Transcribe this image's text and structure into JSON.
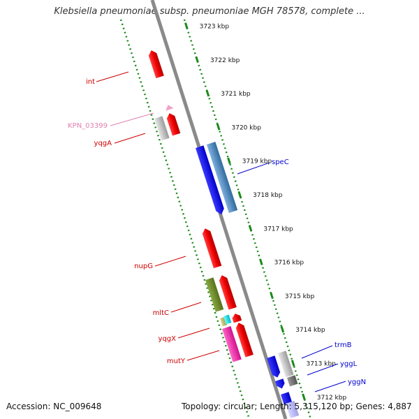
{
  "title": "Klebsiella pneumoniae subsp. pneumoniae MGH 78578, complete ...",
  "accession": "Accession: NC_009648",
  "stats": "Topology: circular; Length: 5,315,120 bp; Genes: 4,887",
  "colors": {
    "track": "#1a8a1a",
    "backbone": "#8a8a8a",
    "forward_label": "#cc0000",
    "reverse_label": "#0000cc",
    "pseudo_label": "#e080b0"
  },
  "ticks": [
    {
      "kbp": 3723,
      "label": "3723 kbp"
    },
    {
      "kbp": 3722,
      "label": "3722 kbp"
    },
    {
      "kbp": 3721,
      "label": "3721 kbp"
    },
    {
      "kbp": 3720,
      "label": "3720 kbp"
    },
    {
      "kbp": 3719,
      "label": "3719 kbp"
    },
    {
      "kbp": 3718,
      "label": "3718 kbp"
    },
    {
      "kbp": 3717,
      "label": "3717 kbp"
    },
    {
      "kbp": 3716,
      "label": "3716 kbp"
    },
    {
      "kbp": 3715,
      "label": "3715 kbp"
    },
    {
      "kbp": 3714,
      "label": "3714 kbp"
    },
    {
      "kbp": 3713,
      "label": "3713 kbp"
    },
    {
      "kbp": 3712,
      "label": "3712 kbp"
    }
  ],
  "gene_labels_left": [
    {
      "name": "int",
      "color": "#cc0000"
    },
    {
      "name": "KPN_03399",
      "color": "#e080b0"
    },
    {
      "name": "yqgA",
      "color": "#cc0000"
    },
    {
      "name": "nupG",
      "color": "#cc0000"
    },
    {
      "name": "mltC",
      "color": "#cc0000"
    },
    {
      "name": "yqgX",
      "color": "#cc0000"
    },
    {
      "name": "mutY",
      "color": "#cc0000"
    }
  ],
  "gene_labels_right": [
    {
      "name": "speC",
      "color": "#0000cc"
    },
    {
      "name": "trmB",
      "color": "#0000cc"
    },
    {
      "name": "yggL",
      "color": "#0000cc"
    },
    {
      "name": "yggN",
      "color": "#0000cc"
    }
  ]
}
